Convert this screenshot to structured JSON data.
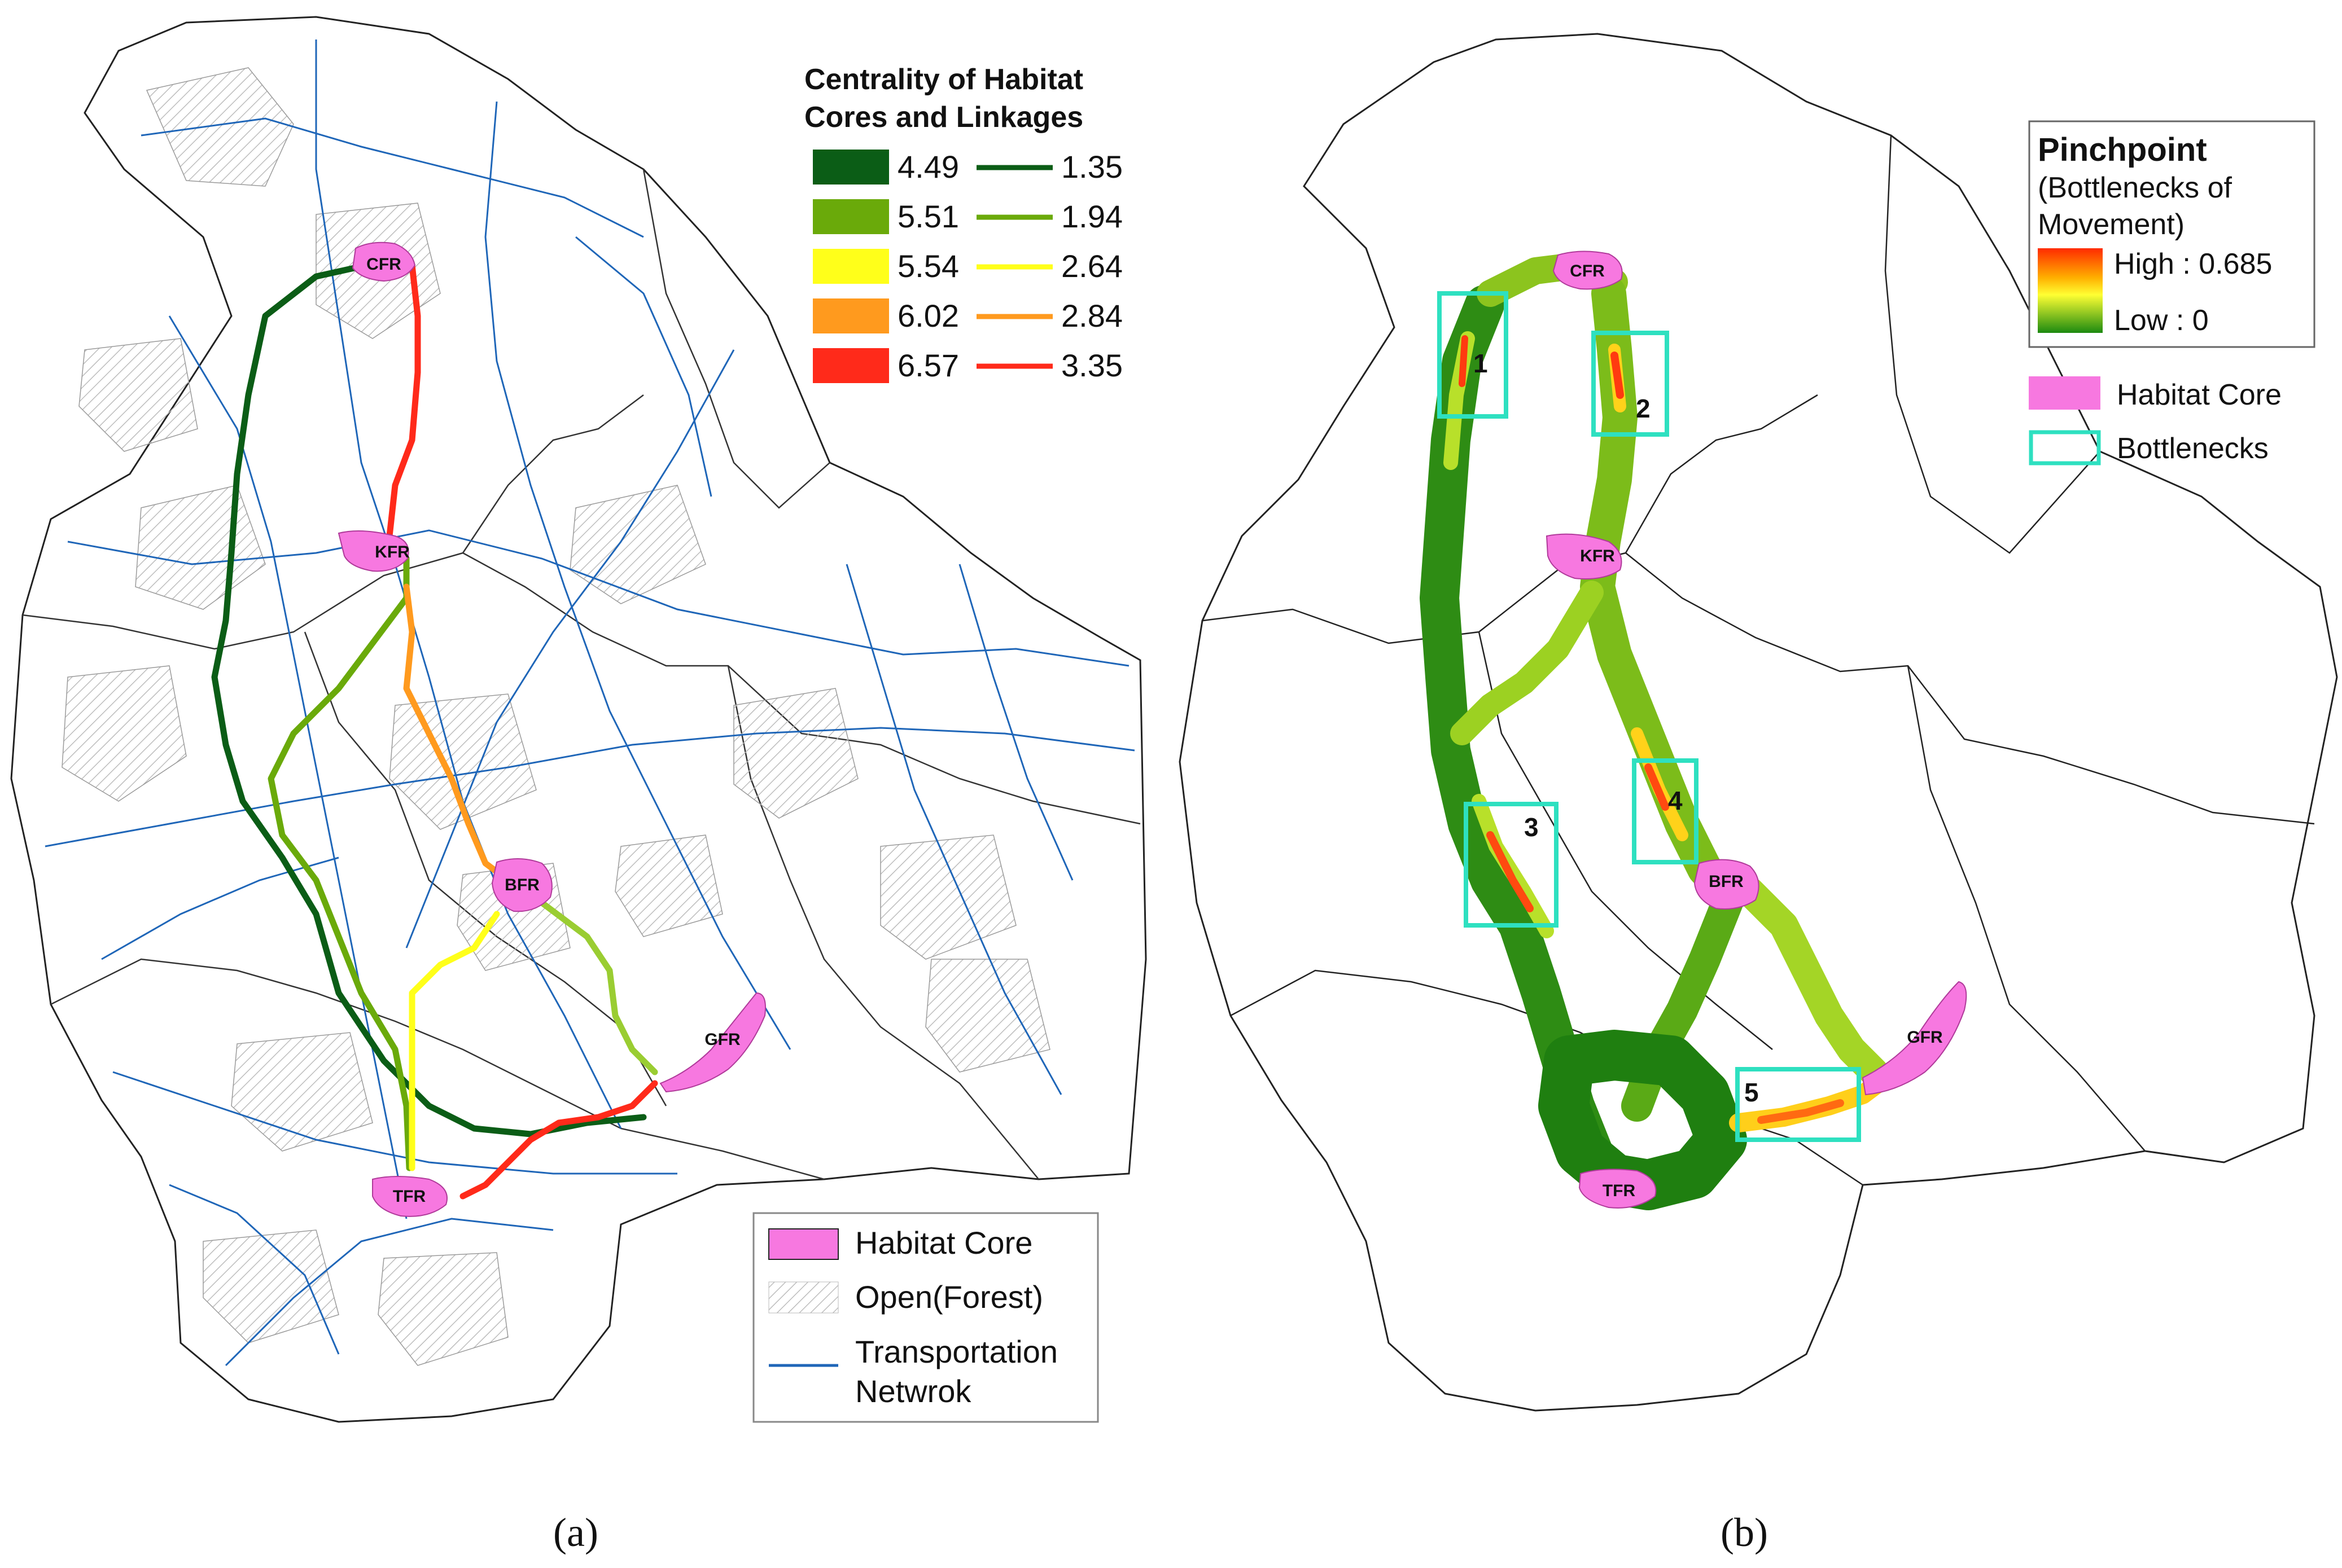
{
  "panel_a": {
    "caption": "(a)",
    "legend_centrality": {
      "title_line1": "Centrality of Habitat",
      "title_line2": "Cores and Linkages",
      "rows": [
        {
          "core": "4.49",
          "linkage": "1.35",
          "color": "#0b5d16"
        },
        {
          "core": "5.51",
          "linkage": "1.94",
          "color": "#6aaa0a"
        },
        {
          "core": "5.54",
          "linkage": "2.64",
          "color": "#ffff1a"
        },
        {
          "core": "6.02",
          "linkage": "2.84",
          "color": "#ff9a1e"
        },
        {
          "core": "6.57",
          "linkage": "3.35",
          "color": "#ff2a1a"
        }
      ]
    },
    "legend_bottom": {
      "habitat_core": "Habitat Core",
      "open_forest": "Open(Forest)",
      "transport_line1": "Transportation",
      "transport_line2": "Netwrok"
    },
    "cores": {
      "cfr": "CFR",
      "kfr": "KFR",
      "bfr": "BFR",
      "gfr": "GFR",
      "tfr": "TFR"
    }
  },
  "panel_b": {
    "caption": "(b)",
    "legend": {
      "title": "Pinchpoint",
      "subtitle_line1": "(Bottlenecks of",
      "subtitle_line2": "Movement)",
      "high": "High : 0.685",
      "low": "Low : 0",
      "habitat_core": "Habitat Core",
      "bottlenecks": "Bottlenecks"
    },
    "cores": {
      "cfr": "CFR",
      "kfr": "KFR",
      "bfr": "BFR",
      "gfr": "GFR",
      "tfr": "TFR"
    },
    "bottleneck_labels": [
      "1",
      "2",
      "3",
      "4",
      "5"
    ]
  },
  "colors": {
    "habitat_core": "#f778e0",
    "transport": "#1f66b8",
    "bottleneck_box": "#2ee0c0",
    "boundary": "#222222"
  }
}
